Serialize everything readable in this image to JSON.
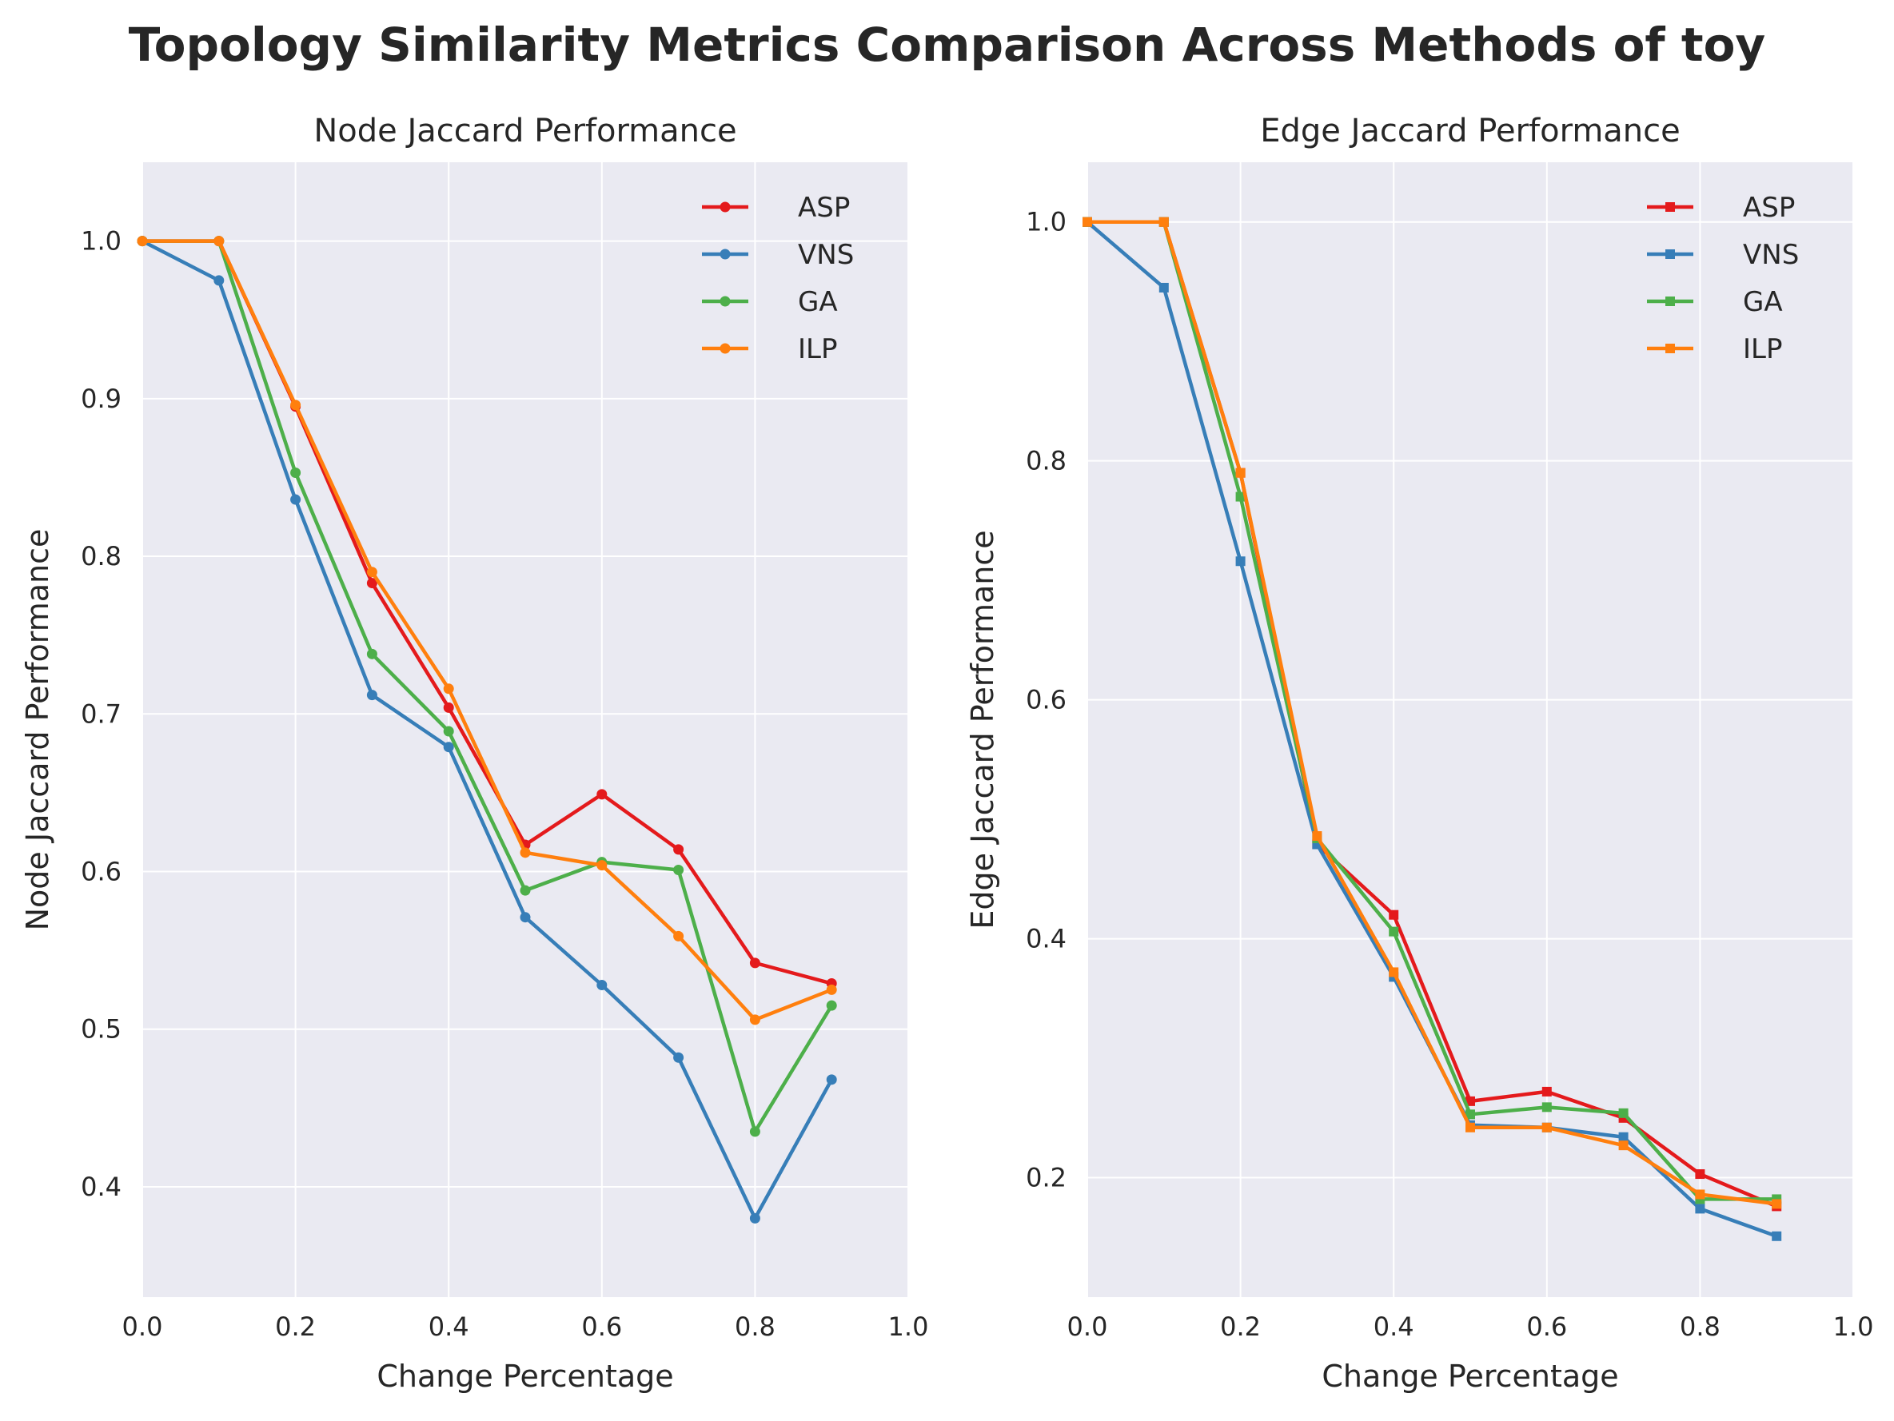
{
  "title": "Topology Similarity Metrics Comparison Across Methods of toy",
  "colors": {
    "background": "#eaeaf2",
    "grid": "#ffffff",
    "ASP": "#e41a1c",
    "VNS": "#377eb8",
    "GA": "#4daf4a",
    "ILP": "#ff7f0e"
  },
  "chart_data": [
    {
      "type": "line",
      "title": "Node Jaccard Performance",
      "xlabel": "Change Percentage",
      "ylabel": "Node Jaccard Performance",
      "xlim": [
        0.0,
        1.0
      ],
      "ylim": [
        0.33,
        1.05
      ],
      "xticks": [
        "0.0",
        "0.2",
        "0.4",
        "0.6",
        "0.8",
        "1.0"
      ],
      "yticks": [
        "0.4",
        "0.5",
        "0.6",
        "0.7",
        "0.8",
        "0.9",
        "1.0"
      ],
      "marker": "circle",
      "legend_position": "upper right",
      "grid": true,
      "x": [
        0.0,
        0.1,
        0.2,
        0.3,
        0.4,
        0.5,
        0.6,
        0.7,
        0.8,
        0.9
      ],
      "series": [
        {
          "name": "ASP",
          "values": [
            1.0,
            1.0,
            0.895,
            0.783,
            0.704,
            0.617,
            0.649,
            0.614,
            0.542,
            0.529
          ]
        },
        {
          "name": "VNS",
          "values": [
            1.0,
            0.975,
            0.836,
            0.712,
            0.679,
            0.571,
            0.528,
            0.482,
            0.38,
            0.468
          ]
        },
        {
          "name": "GA",
          "values": [
            1.0,
            1.0,
            0.853,
            0.738,
            0.689,
            0.588,
            0.606,
            0.601,
            0.435,
            0.515
          ]
        },
        {
          "name": "ILP",
          "values": [
            1.0,
            1.0,
            0.896,
            0.79,
            0.716,
            0.612,
            0.604,
            0.559,
            0.506,
            0.525
          ]
        }
      ]
    },
    {
      "type": "line",
      "title": "Edge Jaccard Performance",
      "xlabel": "Change Percentage",
      "ylabel": "Edge Jaccard Performance",
      "xlim": [
        0.0,
        1.0
      ],
      "ylim": [
        0.1,
        1.05
      ],
      "xticks": [
        "0.0",
        "0.2",
        "0.4",
        "0.6",
        "0.8",
        "1.0"
      ],
      "yticks": [
        "0.2",
        "0.4",
        "0.6",
        "0.8",
        "1.0"
      ],
      "marker": "square",
      "legend_position": "upper right",
      "grid": true,
      "x": [
        0.0,
        0.1,
        0.2,
        0.3,
        0.4,
        0.5,
        0.6,
        0.7,
        0.8,
        0.9
      ],
      "series": [
        {
          "name": "ASP",
          "values": [
            1.0,
            1.0,
            0.79,
            0.479,
            0.42,
            0.264,
            0.272,
            0.25,
            0.203,
            0.176
          ]
        },
        {
          "name": "VNS",
          "values": [
            1.0,
            0.945,
            0.716,
            0.479,
            0.368,
            0.244,
            0.242,
            0.234,
            0.174,
            0.151
          ]
        },
        {
          "name": "GA",
          "values": [
            1.0,
            1.0,
            0.77,
            0.484,
            0.406,
            0.253,
            0.259,
            0.254,
            0.182,
            0.182
          ]
        },
        {
          "name": "ILP",
          "values": [
            1.0,
            1.0,
            0.79,
            0.486,
            0.372,
            0.242,
            0.242,
            0.227,
            0.186,
            0.178
          ]
        }
      ]
    }
  ]
}
